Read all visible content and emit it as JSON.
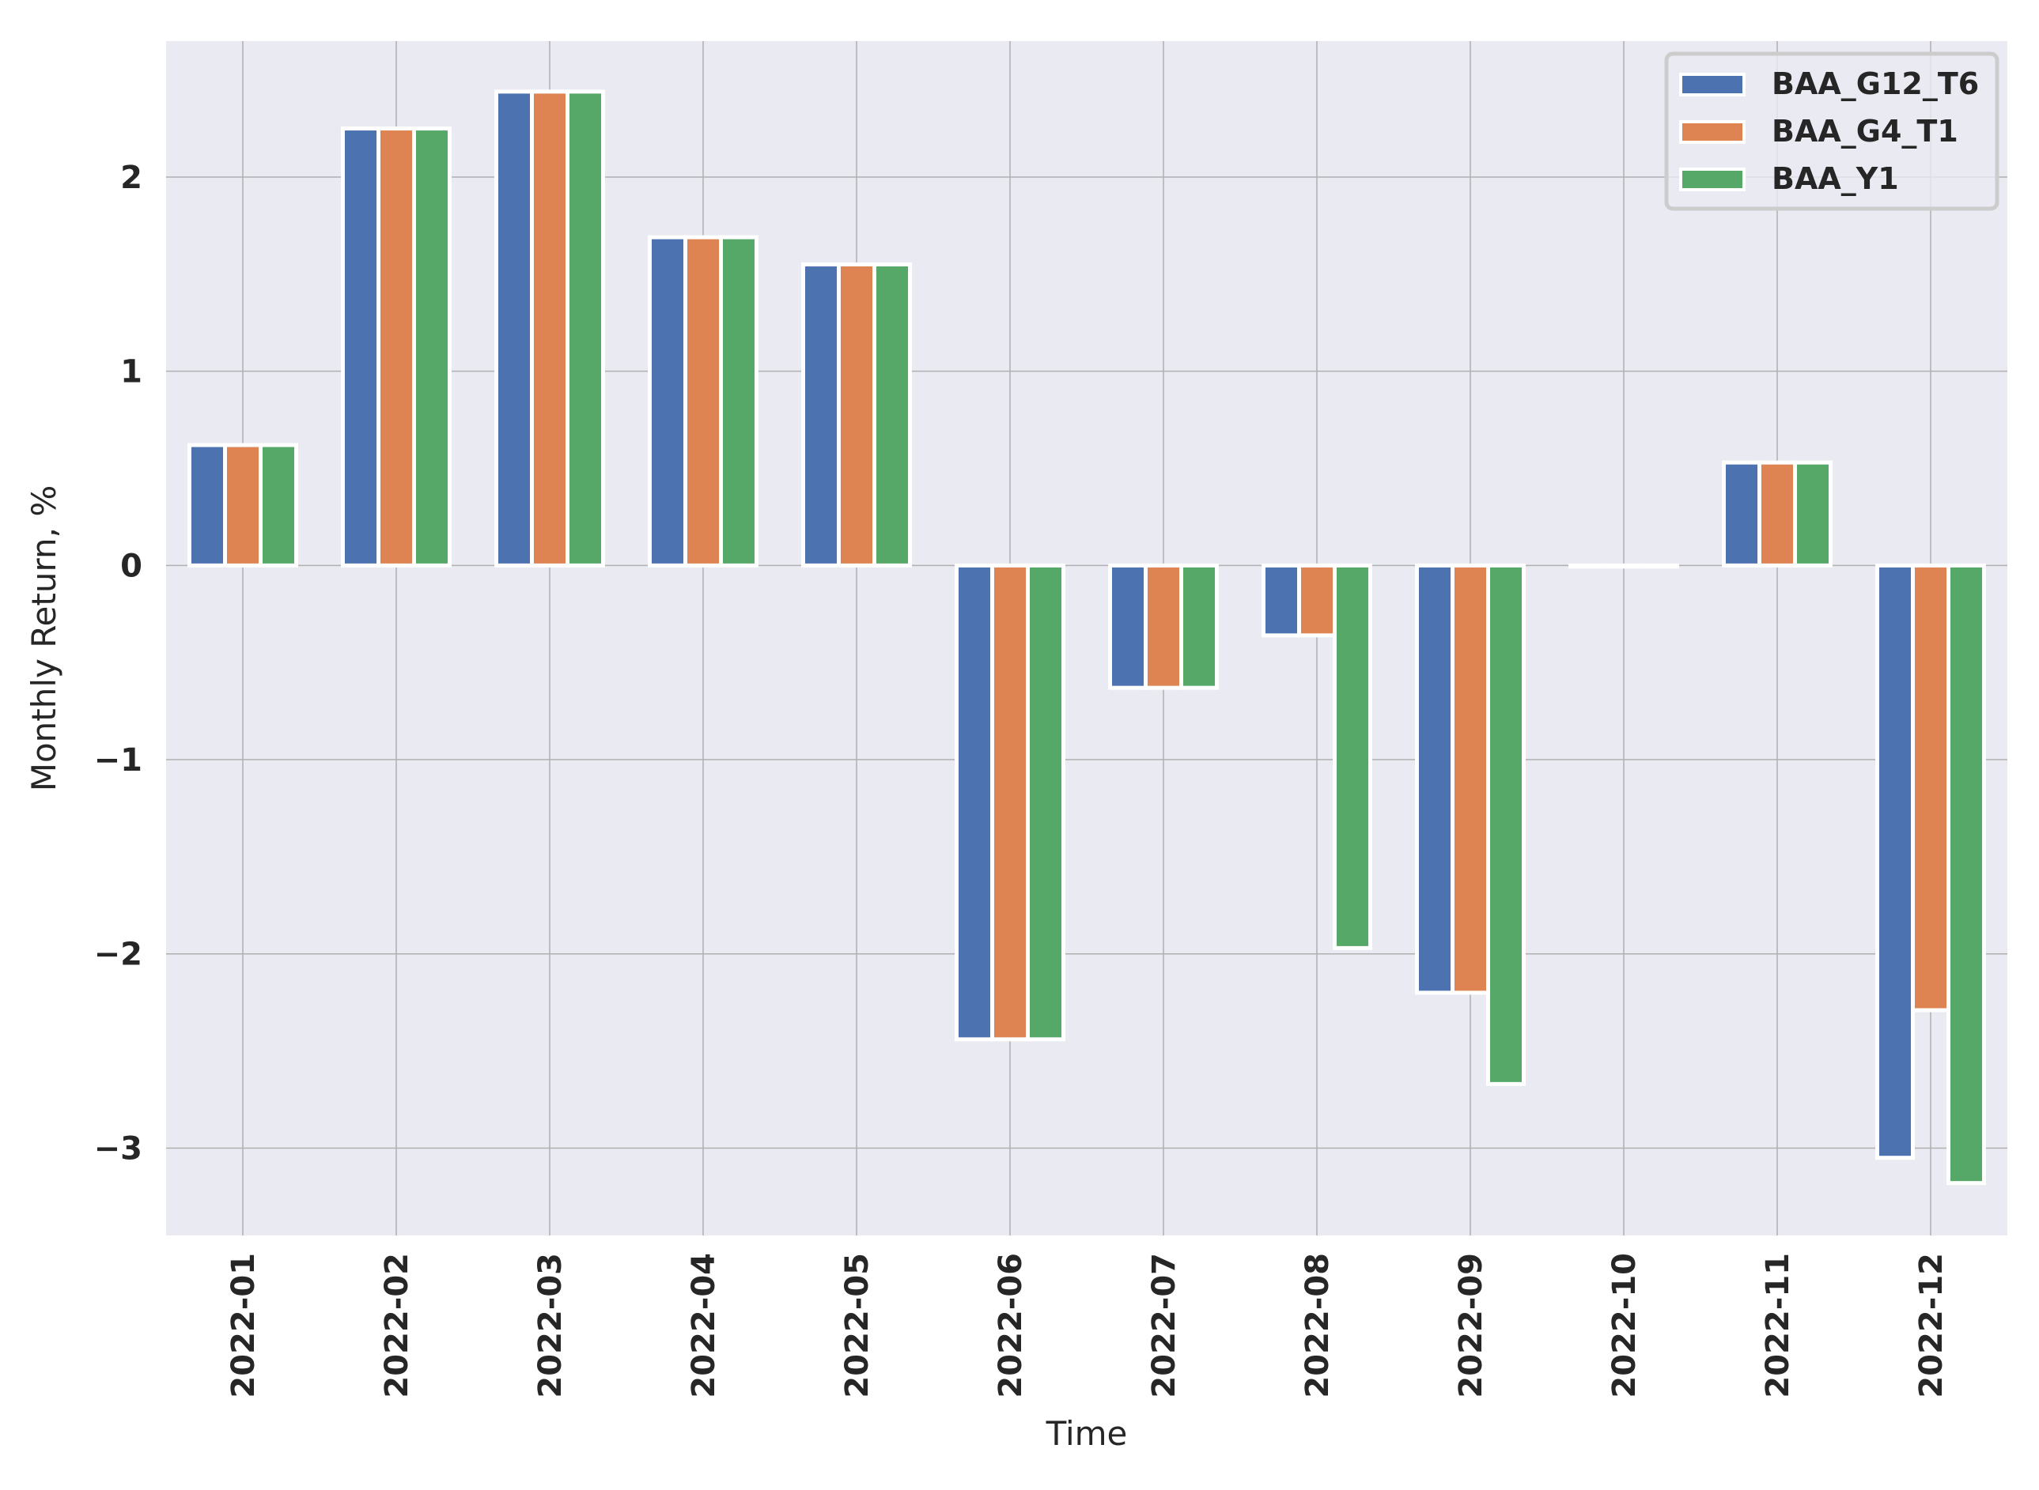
{
  "chart_data": {
    "type": "bar",
    "xlabel": "Time",
    "ylabel": "Monthly Return, %",
    "categories": [
      "2022-01",
      "2022-02",
      "2022-03",
      "2022-04",
      "2022-05",
      "2022-06",
      "2022-07",
      "2022-08",
      "2022-09",
      "2022-10",
      "2022-11",
      "2022-12"
    ],
    "yticks": [
      2,
      1,
      0,
      -1,
      -2,
      -3
    ],
    "ytick_labels": [
      "2",
      "1",
      "0",
      "−1",
      "−2",
      "−3"
    ],
    "ylim": [
      -3.45,
      2.7
    ],
    "grid": true,
    "legend_position": "top-right",
    "series": [
      {
        "name": "BAA_G12_T6",
        "color": "#4c72b0",
        "values": [
          0.62,
          2.25,
          2.44,
          1.69,
          1.55,
          -2.44,
          -0.63,
          -0.36,
          -2.2,
          0.0,
          0.53,
          -3.05
        ]
      },
      {
        "name": "BAA_G4_T1",
        "color": "#dd8452",
        "values": [
          0.62,
          2.25,
          2.44,
          1.69,
          1.55,
          -2.44,
          -0.63,
          -0.36,
          -2.2,
          0.0,
          0.53,
          -2.29
        ]
      },
      {
        "name": "BAA_Y1",
        "color": "#55a868",
        "values": [
          0.62,
          2.25,
          2.44,
          1.69,
          1.55,
          -2.44,
          -0.63,
          -1.97,
          -2.67,
          0.0,
          0.53,
          -3.18
        ]
      }
    ],
    "colors": {
      "plot_background": "#eaeaf2",
      "grid": "#b0b0b0",
      "bar_edge": "#ffffff"
    }
  }
}
